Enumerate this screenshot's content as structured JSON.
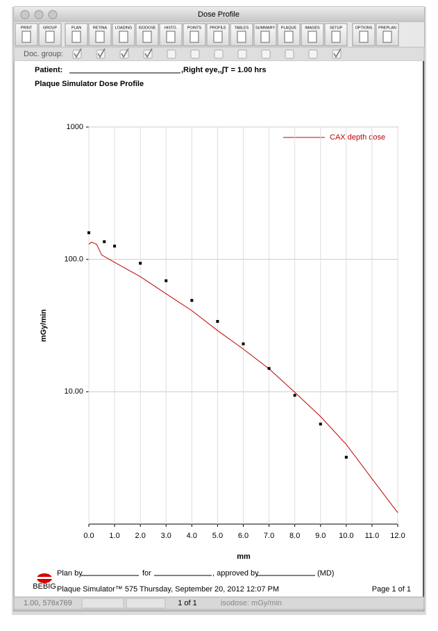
{
  "window": {
    "title": "Dose Profile"
  },
  "toolbar": {
    "buttons": [
      "PRINT",
      "GROUP",
      "PLAN",
      "RETINA",
      "LOADING",
      "ISODOSE",
      "HISTO.",
      "POINTS",
      "PROFILE",
      "TABLES",
      "SUMMARY",
      "PLAQUE",
      "IMAGES",
      "SETUP",
      "OPTIONS",
      "PREPLAN"
    ],
    "doc_group_label": "Doc. group:",
    "doc_group_checked": [
      true,
      true,
      true,
      true,
      false,
      false,
      false,
      false,
      false,
      false,
      false,
      true
    ]
  },
  "report": {
    "patient_label": "Patient:",
    "patient_suffix": ",Right eye,,∫T = 1.00 hrs",
    "title": "Plaque Simulator Dose Profile"
  },
  "chart_data": {
    "type": "line",
    "xlabel": "mm",
    "ylabel": "mGy/min",
    "xlim": [
      0,
      12
    ],
    "ylim": [
      1,
      1000
    ],
    "log_y": true,
    "grid": true,
    "legend": "upper right",
    "xticks": [
      {
        "value": 0,
        "label": "0.0"
      },
      {
        "value": 1,
        "label": "1.0"
      },
      {
        "value": 2,
        "label": "2.0"
      },
      {
        "value": 3,
        "label": "3.0"
      },
      {
        "value": 4,
        "label": "4.0"
      },
      {
        "value": 5,
        "label": "5.0"
      },
      {
        "value": 6,
        "label": "6.0"
      },
      {
        "value": 7,
        "label": "7.0"
      },
      {
        "value": 8,
        "label": "8.0"
      },
      {
        "value": 9,
        "label": "9.0"
      },
      {
        "value": 10,
        "label": "10.0"
      },
      {
        "value": 11,
        "label": "11.0"
      },
      {
        "value": 12,
        "label": "12.0"
      }
    ],
    "yticks": [
      1000,
      {
        "value": 100,
        "label": "100.0"
      },
      {
        "value": 10,
        "label": "10.00"
      }
    ],
    "series": [
      {
        "name": "CAX depth dose",
        "type": "line",
        "color": "#c00000",
        "x": [
          0,
          0.1,
          0.3,
          0.5,
          1,
          2,
          3,
          4,
          5,
          6,
          7,
          8,
          9,
          10,
          11,
          12
        ],
        "values": [
          130,
          135,
          130,
          108,
          95,
          74,
          55,
          41,
          29,
          21,
          14.9,
          9.9,
          6.5,
          4.0,
          2.2,
          1.22
        ]
      },
      {
        "type": "scatter",
        "color": "#000000",
        "x": [
          0,
          0.6,
          1,
          2,
          3,
          4,
          5,
          6,
          7,
          8,
          9,
          10
        ],
        "values": [
          159,
          136,
          126,
          93.5,
          69,
          49,
          34,
          23,
          15,
          9.4,
          5.7,
          3.2
        ]
      }
    ]
  },
  "footer": {
    "plan_by": "Plan by",
    "for": "for",
    "approved_by": ", approved by",
    "md": "(MD)",
    "logo": "BEBIG",
    "app_line": "Plaque Simulator™ 575 Thursday, September 20, 2012 12:07 PM",
    "page": "Page 1  of 1"
  },
  "status_bar": {
    "coords": "1.00, 576x769",
    "page": "1  of  1",
    "unit": "isodose: mGy/min"
  }
}
